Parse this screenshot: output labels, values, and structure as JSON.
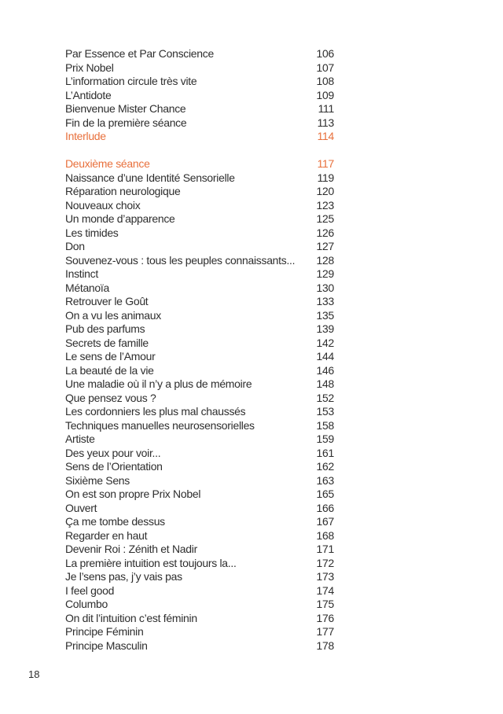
{
  "page": {
    "number": "18",
    "accent_color": "#E8703C",
    "text_color": "#2e2e2e",
    "background_color": "#ffffff"
  },
  "toc": {
    "sections": [
      {
        "entries": [
          {
            "title": "Par Essence et Par Conscience",
            "page": "106",
            "highlight": false
          },
          {
            "title": "Prix Nobel",
            "page": "107",
            "highlight": false
          },
          {
            "title": "L’information circule très vite",
            "page": "108",
            "highlight": false
          },
          {
            "title": "L’Antidote",
            "page": "109",
            "highlight": false
          },
          {
            "title": "Bienvenue Mister Chance",
            "page": "111",
            "highlight": false
          },
          {
            "title": "Fin de la première séance",
            "page": "113",
            "highlight": false
          },
          {
            "title": "Interlude",
            "page": "114",
            "highlight": true
          }
        ]
      },
      {
        "entries": [
          {
            "title": "Deuxième séance",
            "page": "117",
            "highlight": true
          },
          {
            "title": "Naissance d’une Identité Sensorielle",
            "page": "119",
            "highlight": false
          },
          {
            "title": "Réparation neurologique",
            "page": "120",
            "highlight": false
          },
          {
            "title": "Nouveaux choix",
            "page": "123",
            "highlight": false
          },
          {
            "title": "Un monde d’apparence",
            "page": "125",
            "highlight": false
          },
          {
            "title": "Les timides",
            "page": "126",
            "highlight": false
          },
          {
            "title": "Don",
            "page": "127",
            "highlight": false
          },
          {
            "title": "Souvenez-vous : tous les peuples connaissants...",
            "page": "128",
            "highlight": false
          },
          {
            "title": "Instinct",
            "page": "129",
            "highlight": false
          },
          {
            "title": "Métanoïa",
            "page": "130",
            "highlight": false
          },
          {
            "title": "Retrouver le Goût",
            "page": "133",
            "highlight": false
          },
          {
            "title": "On a vu les animaux",
            "page": "135",
            "highlight": false
          },
          {
            "title": "Pub des parfums",
            "page": "139",
            "highlight": false
          },
          {
            "title": "Secrets de famille",
            "page": "142",
            "highlight": false
          },
          {
            "title": "Le sens de l’Amour",
            "page": "144",
            "highlight": false
          },
          {
            "title": "La beauté de la vie",
            "page": "146",
            "highlight": false
          },
          {
            "title": "Une maladie où il n’y a plus de mémoire",
            "page": "148",
            "highlight": false
          },
          {
            "title": "Que pensez vous ?",
            "page": "152",
            "highlight": false
          },
          {
            "title": "Les cordonniers les plus mal chaussés",
            "page": "153",
            "highlight": false
          },
          {
            "title": "Techniques manuelles neurosensorielles",
            "page": "158",
            "highlight": false
          },
          {
            "title": "Artiste",
            "page": "159",
            "highlight": false
          },
          {
            "title": "Des yeux pour voir...",
            "page": "161",
            "highlight": false
          },
          {
            "title": "Sens de l’Orientation",
            "page": "162",
            "highlight": false
          },
          {
            "title": "Sixième Sens",
            "page": "163",
            "highlight": false
          },
          {
            "title": "On est son propre Prix Nobel",
            "page": "165",
            "highlight": false
          },
          {
            "title": "Ouvert",
            "page": "166",
            "highlight": false
          },
          {
            "title": "Ça me tombe dessus",
            "page": "167",
            "highlight": false
          },
          {
            "title": "Regarder en haut",
            "page": "168",
            "highlight": false
          },
          {
            "title": "Devenir Roi : Zénith et Nadir",
            "page": "171",
            "highlight": false
          },
          {
            "title": "La première intuition est toujours la...",
            "page": "172",
            "highlight": false
          },
          {
            "title": "Je l’sens pas, j’y vais pas",
            "page": "173",
            "highlight": false
          },
          {
            "title": "I feel good",
            "page": "174",
            "highlight": false
          },
          {
            "title": "Columbo",
            "page": "175",
            "highlight": false
          },
          {
            "title": "On dit l’intuition c’est féminin",
            "page": "176",
            "highlight": false
          },
          {
            "title": "Principe Féminin",
            "page": "177",
            "highlight": false
          },
          {
            "title": "Principe Masculin",
            "page": "178",
            "highlight": false
          }
        ]
      }
    ]
  }
}
